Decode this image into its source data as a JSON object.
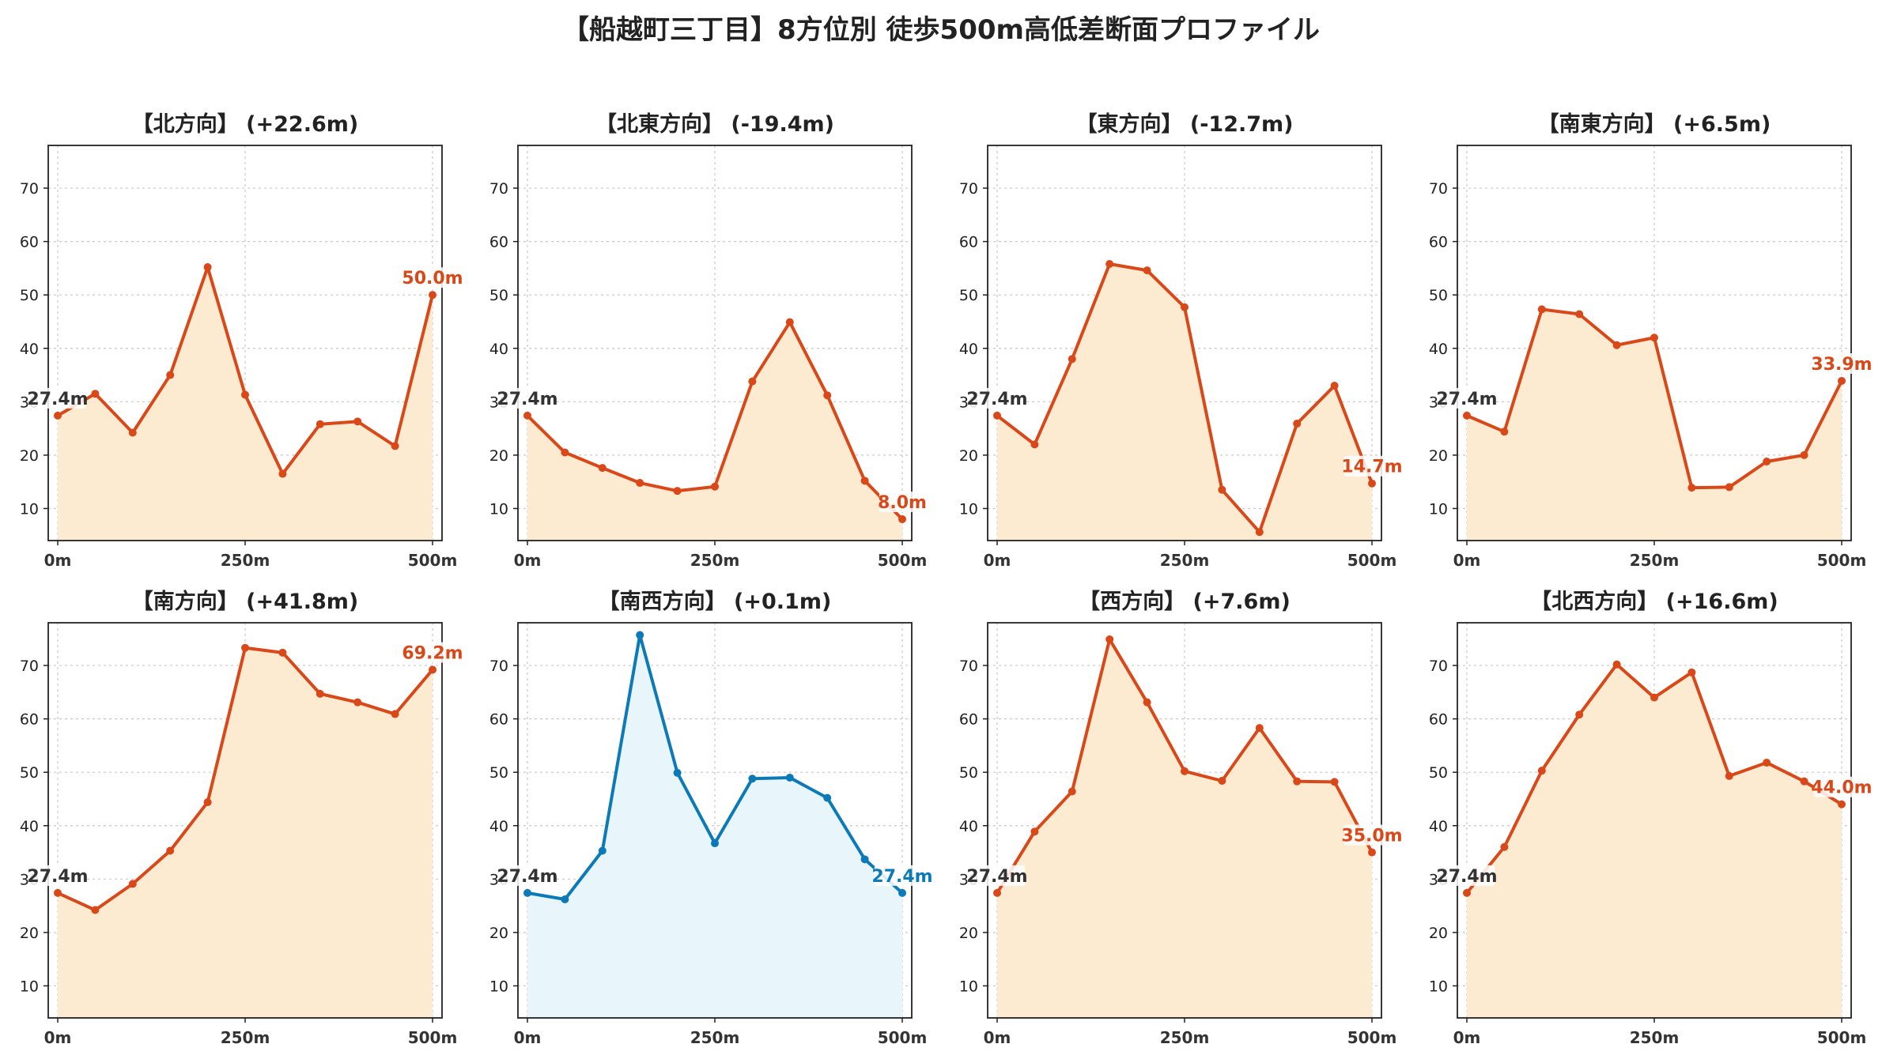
{
  "figure": {
    "title": "【船越町三丁目】8方位別 徒歩500m高低差断面プロファイル"
  },
  "colors": {
    "up": "#d94819",
    "up_fill": "#fdebd1",
    "flat": "#0d7ab8",
    "flat_fill": "#e8f5fb",
    "start_label": "#333333",
    "grid": "#c8c8c8"
  },
  "chart_data": [
    {
      "type": "line",
      "title": "【北方向】 (+22.6m)",
      "x": [
        0,
        50,
        100,
        150,
        200,
        250,
        300,
        350,
        400,
        450,
        500
      ],
      "values": [
        27.4,
        31.5,
        24.2,
        35.0,
        55.2,
        31.3,
        16.5,
        25.8,
        26.3,
        21.7,
        50.0
      ],
      "xticks": [
        "0m",
        "250m",
        "500m"
      ],
      "yticks": [
        "10",
        "20",
        "30",
        "40",
        "50",
        "60",
        "70"
      ],
      "ylim": [
        4,
        78
      ],
      "start_label": "27.4m",
      "end_label": "50.0m",
      "scheme": "up",
      "grid": true
    },
    {
      "type": "line",
      "title": "【北東方向】 (-19.4m)",
      "x": [
        0,
        50,
        100,
        150,
        200,
        250,
        300,
        350,
        400,
        450,
        500
      ],
      "values": [
        27.4,
        20.5,
        17.6,
        14.8,
        13.3,
        14.1,
        33.8,
        44.9,
        31.2,
        15.2,
        8.0
      ],
      "xticks": [
        "0m",
        "250m",
        "500m"
      ],
      "yticks": [
        "10",
        "20",
        "30",
        "40",
        "50",
        "60",
        "70"
      ],
      "ylim": [
        4,
        78
      ],
      "start_label": "27.4m",
      "end_label": "8.0m",
      "scheme": "up",
      "grid": true
    },
    {
      "type": "line",
      "title": "【東方向】 (-12.7m)",
      "x": [
        0,
        50,
        100,
        150,
        200,
        250,
        300,
        350,
        400,
        450,
        500
      ],
      "values": [
        27.4,
        22.0,
        38.0,
        55.8,
        54.6,
        47.7,
        13.5,
        5.6,
        25.9,
        33.0,
        14.7
      ],
      "xticks": [
        "0m",
        "250m",
        "500m"
      ],
      "yticks": [
        "10",
        "20",
        "30",
        "40",
        "50",
        "60",
        "70"
      ],
      "ylim": [
        4,
        78
      ],
      "start_label": "27.4m",
      "end_label": "14.7m",
      "scheme": "up",
      "grid": true
    },
    {
      "type": "line",
      "title": "【南東方向】 (+6.5m)",
      "x": [
        0,
        50,
        100,
        150,
        200,
        250,
        300,
        350,
        400,
        450,
        500
      ],
      "values": [
        27.4,
        24.4,
        47.3,
        46.4,
        40.6,
        42.0,
        13.9,
        14.0,
        18.8,
        20.0,
        33.9
      ],
      "xticks": [
        "0m",
        "250m",
        "500m"
      ],
      "yticks": [
        "10",
        "20",
        "30",
        "40",
        "50",
        "60",
        "70"
      ],
      "ylim": [
        4,
        78
      ],
      "start_label": "27.4m",
      "end_label": "33.9m",
      "scheme": "up",
      "grid": true
    },
    {
      "type": "line",
      "title": "【南方向】 (+41.8m)",
      "x": [
        0,
        50,
        100,
        150,
        200,
        250,
        300,
        350,
        400,
        450,
        500
      ],
      "values": [
        27.4,
        24.2,
        29.1,
        35.3,
        44.4,
        73.3,
        72.4,
        64.7,
        63.1,
        60.9,
        69.2
      ],
      "xticks": [
        "0m",
        "250m",
        "500m"
      ],
      "yticks": [
        "10",
        "20",
        "30",
        "40",
        "50",
        "60",
        "70"
      ],
      "ylim": [
        4,
        78
      ],
      "start_label": "27.4m",
      "end_label": "69.2m",
      "scheme": "up",
      "grid": true
    },
    {
      "type": "line",
      "title": "【南西方向】 (+0.1m)",
      "x": [
        0,
        50,
        100,
        150,
        200,
        250,
        300,
        350,
        400,
        450,
        500
      ],
      "values": [
        27.4,
        26.2,
        35.3,
        75.7,
        49.9,
        36.7,
        48.8,
        49.0,
        45.2,
        33.7,
        27.4
      ],
      "xticks": [
        "0m",
        "250m",
        "500m"
      ],
      "yticks": [
        "10",
        "20",
        "30",
        "40",
        "50",
        "60",
        "70"
      ],
      "ylim": [
        4,
        78
      ],
      "start_label": "27.4m",
      "end_label": "27.4m",
      "scheme": "flat",
      "grid": true
    },
    {
      "type": "line",
      "title": "【西方向】 (+7.6m)",
      "x": [
        0,
        50,
        100,
        150,
        200,
        250,
        300,
        350,
        400,
        450,
        500
      ],
      "values": [
        27.4,
        38.9,
        46.4,
        74.9,
        63.1,
        50.2,
        48.4,
        58.3,
        48.3,
        48.2,
        35.0
      ],
      "xticks": [
        "0m",
        "250m",
        "500m"
      ],
      "yticks": [
        "10",
        "20",
        "30",
        "40",
        "50",
        "60",
        "70"
      ],
      "ylim": [
        4,
        78
      ],
      "start_label": "27.4m",
      "end_label": "35.0m",
      "scheme": "up",
      "grid": true
    },
    {
      "type": "line",
      "title": "【北西方向】 (+16.6m)",
      "x": [
        0,
        50,
        100,
        150,
        200,
        250,
        300,
        350,
        400,
        450,
        500
      ],
      "values": [
        27.4,
        36.0,
        50.3,
        60.8,
        70.2,
        64.0,
        68.7,
        49.3,
        51.8,
        48.3,
        44.0
      ],
      "xticks": [
        "0m",
        "250m",
        "500m"
      ],
      "yticks": [
        "10",
        "20",
        "30",
        "40",
        "50",
        "60",
        "70"
      ],
      "ylim": [
        4,
        78
      ],
      "start_label": "27.4m",
      "end_label": "44.0m",
      "scheme": "up",
      "grid": true
    }
  ]
}
